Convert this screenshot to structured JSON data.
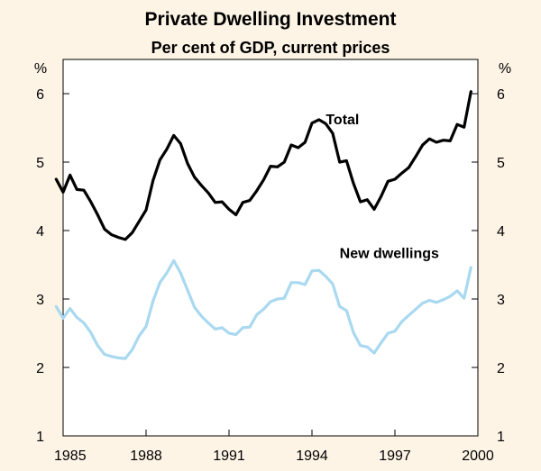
{
  "chart_data": {
    "type": "line",
    "title": "Private Dwelling Investment",
    "subtitle": "Per cent of GDP, current prices",
    "left_unit": "%",
    "right_unit": "%",
    "ylim": [
      1,
      6.5
    ],
    "xlim": [
      1985,
      2000
    ],
    "y_ticks": [
      1,
      2,
      3,
      4,
      5,
      6
    ],
    "x_ticks": [
      {
        "value": 1985,
        "label": "1985"
      },
      {
        "value": 1988,
        "label": "1988"
      },
      {
        "value": 1991,
        "label": "1991"
      },
      {
        "value": 1994,
        "label": "1994"
      },
      {
        "value": 1997,
        "label": "1997"
      },
      {
        "value": 2000,
        "label": "2000"
      }
    ],
    "series": [
      {
        "name": "Total",
        "color": "#000000",
        "label_anchor": {
          "x": 1994.5,
          "y": 5.55
        },
        "points": [
          [
            1984.75,
            4.75
          ],
          [
            1985.0,
            4.56
          ],
          [
            1985.25,
            4.81
          ],
          [
            1985.5,
            4.6
          ],
          [
            1985.75,
            4.59
          ],
          [
            1986.0,
            4.42
          ],
          [
            1986.25,
            4.23
          ],
          [
            1986.5,
            4.02
          ],
          [
            1986.75,
            3.94
          ],
          [
            1987.0,
            3.9
          ],
          [
            1987.25,
            3.87
          ],
          [
            1987.5,
            3.97
          ],
          [
            1988.0,
            4.3
          ],
          [
            1988.25,
            4.73
          ],
          [
            1988.5,
            5.03
          ],
          [
            1988.75,
            5.19
          ],
          [
            1989.0,
            5.39
          ],
          [
            1989.25,
            5.27
          ],
          [
            1989.5,
            4.98
          ],
          [
            1989.75,
            4.78
          ],
          [
            1990.0,
            4.66
          ],
          [
            1990.25,
            4.55
          ],
          [
            1990.5,
            4.41
          ],
          [
            1990.75,
            4.42
          ],
          [
            1991.0,
            4.31
          ],
          [
            1991.25,
            4.23
          ],
          [
            1991.5,
            4.41
          ],
          [
            1991.75,
            4.44
          ],
          [
            1992.0,
            4.58
          ],
          [
            1992.25,
            4.74
          ],
          [
            1992.5,
            4.94
          ],
          [
            1992.75,
            4.93
          ],
          [
            1993.0,
            5.0
          ],
          [
            1993.25,
            5.25
          ],
          [
            1993.5,
            5.21
          ],
          [
            1993.75,
            5.29
          ],
          [
            1994.0,
            5.57
          ],
          [
            1994.25,
            5.62
          ],
          [
            1994.5,
            5.56
          ],
          [
            1994.75,
            5.42
          ],
          [
            1995.0,
            5.0
          ],
          [
            1995.25,
            5.02
          ],
          [
            1995.5,
            4.69
          ],
          [
            1995.75,
            4.42
          ],
          [
            1996.0,
            4.45
          ],
          [
            1996.25,
            4.31
          ],
          [
            1996.5,
            4.5
          ],
          [
            1996.75,
            4.72
          ],
          [
            1997.0,
            4.75
          ],
          [
            1997.25,
            4.84
          ],
          [
            1997.5,
            4.92
          ],
          [
            1997.75,
            5.08
          ],
          [
            1998.0,
            5.25
          ],
          [
            1998.25,
            5.34
          ],
          [
            1998.5,
            5.29
          ],
          [
            1998.75,
            5.32
          ],
          [
            1999.0,
            5.31
          ],
          [
            1999.25,
            5.55
          ],
          [
            1999.5,
            5.51
          ],
          [
            1999.75,
            6.03
          ]
        ]
      },
      {
        "name": "New dwellings",
        "color": "#a9d9f0",
        "label_anchor": {
          "x": 1995.0,
          "y": 3.6
        },
        "points": [
          [
            1984.75,
            2.89
          ],
          [
            1985.0,
            2.72
          ],
          [
            1985.25,
            2.86
          ],
          [
            1985.5,
            2.73
          ],
          [
            1985.75,
            2.65
          ],
          [
            1986.0,
            2.51
          ],
          [
            1986.25,
            2.32
          ],
          [
            1986.5,
            2.19
          ],
          [
            1986.75,
            2.16
          ],
          [
            1987.0,
            2.14
          ],
          [
            1987.25,
            2.13
          ],
          [
            1987.5,
            2.26
          ],
          [
            1987.75,
            2.46
          ],
          [
            1988.0,
            2.6
          ],
          [
            1988.25,
            2.97
          ],
          [
            1988.5,
            3.24
          ],
          [
            1988.75,
            3.38
          ],
          [
            1989.0,
            3.56
          ],
          [
            1989.25,
            3.38
          ],
          [
            1989.5,
            3.13
          ],
          [
            1989.75,
            2.88
          ],
          [
            1990.0,
            2.75
          ],
          [
            1990.25,
            2.65
          ],
          [
            1990.5,
            2.56
          ],
          [
            1990.75,
            2.58
          ],
          [
            1991.0,
            2.5
          ],
          [
            1991.25,
            2.48
          ],
          [
            1991.5,
            2.58
          ],
          [
            1991.75,
            2.59
          ],
          [
            1992.0,
            2.77
          ],
          [
            1992.25,
            2.85
          ],
          [
            1992.5,
            2.96
          ],
          [
            1992.75,
            3.0
          ],
          [
            1993.0,
            3.01
          ],
          [
            1993.25,
            3.24
          ],
          [
            1993.5,
            3.24
          ],
          [
            1993.75,
            3.21
          ],
          [
            1994.0,
            3.41
          ],
          [
            1994.25,
            3.42
          ],
          [
            1994.5,
            3.33
          ],
          [
            1994.75,
            3.22
          ],
          [
            1995.0,
            2.89
          ],
          [
            1995.25,
            2.83
          ],
          [
            1995.5,
            2.51
          ],
          [
            1995.75,
            2.32
          ],
          [
            1996.0,
            2.3
          ],
          [
            1996.25,
            2.21
          ],
          [
            1996.5,
            2.36
          ],
          [
            1996.75,
            2.5
          ],
          [
            1997.0,
            2.53
          ],
          [
            1997.25,
            2.67
          ],
          [
            1997.5,
            2.76
          ],
          [
            1997.75,
            2.85
          ],
          [
            1998.0,
            2.94
          ],
          [
            1998.25,
            2.98
          ],
          [
            1998.5,
            2.95
          ],
          [
            1998.75,
            2.99
          ],
          [
            1999.0,
            3.04
          ],
          [
            1999.25,
            3.12
          ],
          [
            1999.5,
            3.01
          ],
          [
            1999.75,
            3.46
          ]
        ]
      }
    ]
  }
}
